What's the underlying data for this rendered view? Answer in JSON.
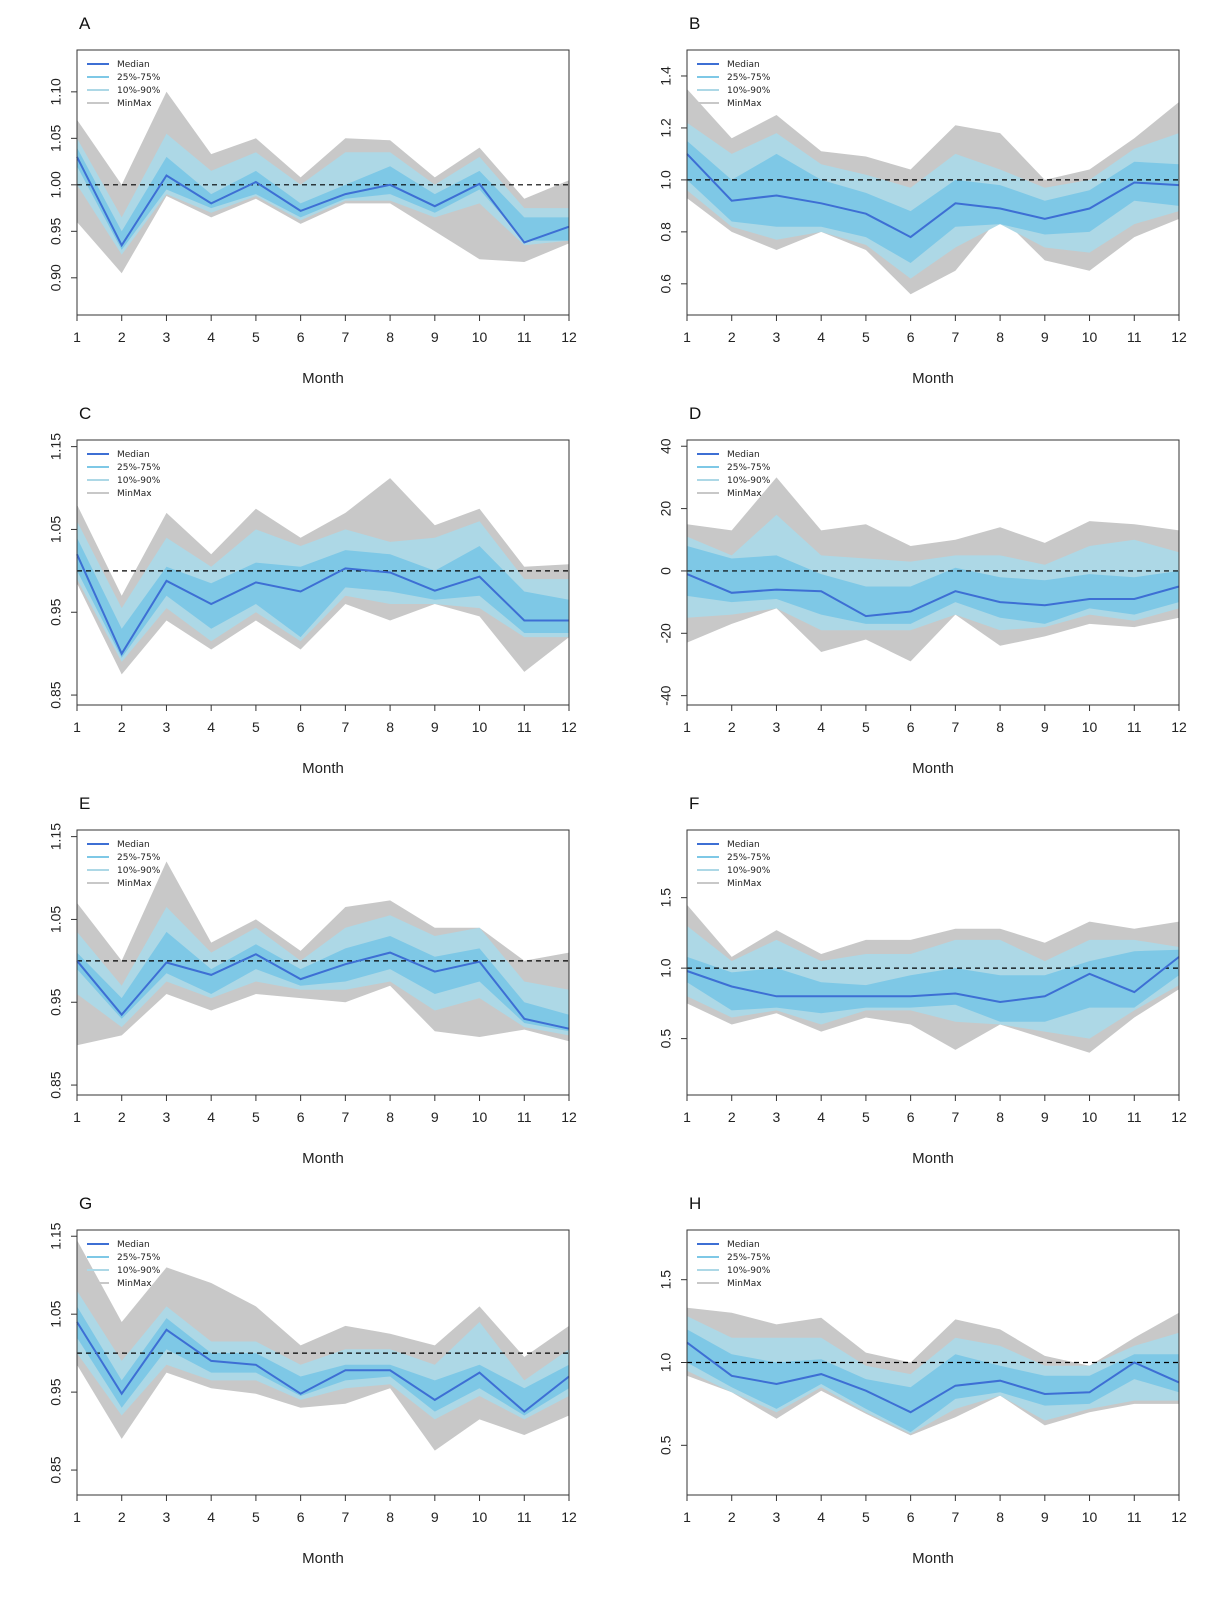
{
  "figure": {
    "xlabel": "Month",
    "legend": [
      "Median",
      "25%-75%",
      "10%-90%",
      "MinMax"
    ],
    "colors": {
      "median": "#3d6fd4",
      "iqr": "#7ec8e6",
      "p1090": "#add8e6",
      "minmax": "#c8c8c8",
      "reference": "#000000"
    }
  },
  "chart_data": [
    {
      "panel": "A",
      "type": "area",
      "x": [
        1,
        2,
        3,
        4,
        5,
        6,
        7,
        8,
        9,
        10,
        11,
        12
      ],
      "xlabel": "Month",
      "ylabel": "",
      "ylim": [
        0.86,
        1.145
      ],
      "yticks": [
        "0.90",
        "0.95",
        "1.00",
        "1.05",
        "1.10"
      ],
      "reference_line": 1.0,
      "legend_position": "top-left",
      "median": [
        1.03,
        0.935,
        1.01,
        0.98,
        1.003,
        0.972,
        0.99,
        1.0,
        0.977,
        1.001,
        0.938,
        0.955
      ],
      "p25": [
        1.02,
        0.93,
        0.995,
        0.975,
        0.99,
        0.965,
        0.985,
        0.99,
        0.97,
        0.995,
        0.94,
        0.94
      ],
      "p75": [
        1.04,
        0.95,
        1.03,
        0.99,
        1.015,
        0.98,
        1.0,
        1.02,
        0.99,
        1.015,
        0.965,
        0.965
      ],
      "p10": [
        1.0,
        0.925,
        0.99,
        0.97,
        0.988,
        0.962,
        0.983,
        0.983,
        0.965,
        0.98,
        0.935,
        0.94
      ],
      "p90": [
        1.05,
        0.965,
        1.055,
        1.015,
        1.035,
        1.0,
        1.035,
        1.035,
        1.0,
        1.03,
        0.975,
        0.975
      ],
      "min": [
        0.96,
        0.905,
        0.988,
        0.965,
        0.985,
        0.958,
        0.98,
        0.98,
        0.95,
        0.92,
        0.917,
        0.937
      ],
      "max": [
        1.07,
        1.0,
        1.1,
        1.033,
        1.05,
        1.008,
        1.05,
        1.048,
        1.008,
        1.04,
        0.985,
        1.005
      ]
    },
    {
      "panel": "B",
      "type": "area",
      "x": [
        1,
        2,
        3,
        4,
        5,
        6,
        7,
        8,
        9,
        10,
        11,
        12
      ],
      "xlabel": "Month",
      "ylabel": "",
      "ylim": [
        0.48,
        1.5
      ],
      "yticks": [
        "0.6",
        "0.8",
        "1.0",
        "1.2",
        "1.4"
      ],
      "reference_line": 1.0,
      "legend_position": "top-left",
      "median": [
        1.1,
        0.92,
        0.94,
        0.91,
        0.87,
        0.78,
        0.91,
        0.89,
        0.85,
        0.89,
        0.99,
        0.98
      ],
      "p25": [
        1.0,
        0.84,
        0.82,
        0.82,
        0.78,
        0.68,
        0.82,
        0.83,
        0.79,
        0.8,
        0.92,
        0.9
      ],
      "p75": [
        1.15,
        1.0,
        1.1,
        1.0,
        0.95,
        0.88,
        1.0,
        0.98,
        0.92,
        0.96,
        1.07,
        1.06
      ],
      "p10": [
        0.96,
        0.82,
        0.77,
        0.8,
        0.75,
        0.62,
        0.74,
        0.83,
        0.74,
        0.72,
        0.83,
        0.88
      ],
      "p90": [
        1.22,
        1.1,
        1.18,
        1.06,
        1.02,
        0.97,
        1.1,
        1.04,
        0.97,
        1.0,
        1.12,
        1.18
      ],
      "min": [
        0.93,
        0.8,
        0.73,
        0.8,
        0.73,
        0.56,
        0.65,
        0.86,
        0.69,
        0.65,
        0.78,
        0.85
      ],
      "max": [
        1.35,
        1.16,
        1.25,
        1.11,
        1.09,
        1.04,
        1.21,
        1.18,
        1.0,
        1.04,
        1.16,
        1.3
      ]
    },
    {
      "panel": "C",
      "type": "area",
      "x": [
        1,
        2,
        3,
        4,
        5,
        6,
        7,
        8,
        9,
        10,
        11,
        12
      ],
      "xlabel": "Month",
      "ylabel": "",
      "ylim": [
        0.838,
        1.158
      ],
      "yticks": [
        "0.85",
        "0.95",
        "1.05",
        "1.15"
      ],
      "reference_line": 1.0,
      "legend_position": "top-left",
      "median": [
        1.02,
        0.9,
        0.988,
        0.96,
        0.986,
        0.975,
        1.003,
        0.998,
        0.976,
        0.993,
        0.94,
        0.94
      ],
      "p25": [
        1.0,
        0.895,
        0.97,
        0.93,
        0.96,
        0.92,
        0.98,
        0.975,
        0.965,
        0.97,
        0.925,
        0.925
      ],
      "p75": [
        1.04,
        0.93,
        1.005,
        0.985,
        1.01,
        1.005,
        1.025,
        1.02,
        1.0,
        1.03,
        0.975,
        0.965
      ],
      "p10": [
        0.99,
        0.89,
        0.955,
        0.915,
        0.95,
        0.915,
        0.97,
        0.96,
        0.96,
        0.955,
        0.92,
        0.92
      ],
      "p90": [
        1.06,
        0.955,
        1.04,
        1.005,
        1.05,
        1.03,
        1.05,
        1.035,
        1.04,
        1.06,
        0.99,
        0.99
      ],
      "min": [
        0.985,
        0.875,
        0.94,
        0.905,
        0.94,
        0.905,
        0.96,
        0.94,
        0.96,
        0.945,
        0.878,
        0.92
      ],
      "max": [
        1.08,
        0.97,
        1.07,
        1.02,
        1.075,
        1.04,
        1.07,
        1.112,
        1.055,
        1.075,
        1.005,
        1.008
      ]
    },
    {
      "panel": "D",
      "type": "area",
      "x": [
        1,
        2,
        3,
        4,
        5,
        6,
        7,
        8,
        9,
        10,
        11,
        12
      ],
      "xlabel": "Month",
      "ylabel": "",
      "ylim": [
        -43,
        42
      ],
      "yticks": [
        "-40",
        "-20",
        "0",
        "20",
        "40"
      ],
      "reference_line": 0,
      "legend_position": "top-left",
      "median": [
        -1,
        -7,
        -6,
        -6.5,
        -14.5,
        -13,
        -6.5,
        -10,
        -11,
        -9,
        -9,
        -5
      ],
      "p25": [
        -8,
        -10,
        -9,
        -14,
        -17,
        -17,
        -10,
        -15,
        -17,
        -12,
        -14,
        -10
      ],
      "p75": [
        8,
        4,
        5,
        -1,
        -5,
        -5,
        1,
        -2,
        -3,
        -1,
        -2,
        0
      ],
      "p10": [
        -15,
        -14,
        -12,
        -19,
        -19,
        -19,
        -14,
        -19,
        -18,
        -14,
        -16,
        -12
      ],
      "p90": [
        11,
        5,
        18,
        5,
        4,
        3,
        5,
        5,
        2,
        8,
        10,
        6
      ],
      "min": [
        -23,
        -17,
        -12,
        -26,
        -22,
        -29,
        -14,
        -24,
        -21,
        -17,
        -18,
        -15
      ],
      "max": [
        15,
        13,
        30,
        13,
        15,
        8,
        10,
        14,
        9,
        16,
        15,
        13
      ]
    },
    {
      "panel": "E",
      "type": "area",
      "x": [
        1,
        2,
        3,
        4,
        5,
        6,
        7,
        8,
        9,
        10,
        11,
        12
      ],
      "xlabel": "Month",
      "ylabel": "",
      "ylim": [
        0.838,
        1.158
      ],
      "yticks": [
        "0.85",
        "0.95",
        "1.05",
        "1.15"
      ],
      "reference_line": 1.0,
      "legend_position": "top-left",
      "median": [
        1.0,
        0.935,
        0.998,
        0.983,
        1.008,
        0.978,
        0.996,
        1.01,
        0.987,
        0.999,
        0.93,
        0.918
      ],
      "p25": [
        0.99,
        0.93,
        0.985,
        0.96,
        0.99,
        0.97,
        0.975,
        0.99,
        0.96,
        0.975,
        0.925,
        0.915
      ],
      "p75": [
        1.01,
        0.955,
        1.035,
        0.99,
        1.02,
        0.99,
        1.015,
        1.03,
        1.005,
        1.015,
        0.95,
        0.935
      ],
      "p10": [
        0.96,
        0.92,
        0.975,
        0.955,
        0.975,
        0.965,
        0.965,
        0.975,
        0.94,
        0.955,
        0.92,
        0.91
      ],
      "p90": [
        1.035,
        0.97,
        1.065,
        1.01,
        1.04,
        1.0,
        1.04,
        1.055,
        1.03,
        1.04,
        0.975,
        0.965
      ],
      "min": [
        0.898,
        0.91,
        0.96,
        0.94,
        0.96,
        0.955,
        0.95,
        0.97,
        0.915,
        0.908,
        0.917,
        0.903
      ],
      "max": [
        1.07,
        1.0,
        1.12,
        1.022,
        1.05,
        1.012,
        1.065,
        1.073,
        1.04,
        1.04,
        1.0,
        1.01
      ]
    },
    {
      "panel": "F",
      "type": "area",
      "x": [
        1,
        2,
        3,
        4,
        5,
        6,
        7,
        8,
        9,
        10,
        11,
        12
      ],
      "xlabel": "Month",
      "ylabel": "",
      "ylim": [
        0.1,
        1.98
      ],
      "yticks": [
        "0.5",
        "1.0",
        "1.5"
      ],
      "reference_line": 1.0,
      "legend_position": "top-left",
      "median": [
        0.98,
        0.87,
        0.8,
        0.8,
        0.8,
        0.8,
        0.82,
        0.76,
        0.8,
        0.96,
        0.83,
        1.08
      ],
      "p25": [
        0.9,
        0.7,
        0.72,
        0.68,
        0.72,
        0.72,
        0.74,
        0.62,
        0.62,
        0.72,
        0.72,
        0.95
      ],
      "p75": [
        1.08,
        0.97,
        1.0,
        0.9,
        0.88,
        0.95,
        1.0,
        0.95,
        0.95,
        1.05,
        1.12,
        1.13
      ],
      "p10": [
        0.8,
        0.65,
        0.7,
        0.6,
        0.7,
        0.7,
        0.62,
        0.6,
        0.55,
        0.5,
        0.7,
        0.88
      ],
      "p90": [
        1.3,
        1.05,
        1.2,
        1.05,
        1.1,
        1.1,
        1.2,
        1.2,
        1.05,
        1.2,
        1.2,
        1.15
      ],
      "min": [
        0.75,
        0.6,
        0.68,
        0.55,
        0.65,
        0.6,
        0.42,
        0.6,
        0.5,
        0.4,
        0.65,
        0.85
      ],
      "max": [
        1.45,
        1.08,
        1.27,
        1.1,
        1.2,
        1.2,
        1.28,
        1.28,
        1.18,
        1.33,
        1.28,
        1.33
      ]
    },
    {
      "panel": "G",
      "type": "area",
      "x": [
        1,
        2,
        3,
        4,
        5,
        6,
        7,
        8,
        9,
        10,
        11,
        12
      ],
      "xlabel": "Month",
      "ylabel": "",
      "ylim": [
        0.818,
        1.158
      ],
      "yticks": [
        "0.85",
        "0.95",
        "1.05",
        "1.15"
      ],
      "reference_line": 1.0,
      "legend_position": "top-left",
      "median": [
        1.04,
        0.948,
        1.03,
        0.99,
        0.985,
        0.948,
        0.978,
        0.978,
        0.94,
        0.975,
        0.925,
        0.97
      ],
      "p25": [
        1.02,
        0.93,
        1.005,
        0.975,
        0.975,
        0.945,
        0.965,
        0.97,
        0.925,
        0.955,
        0.92,
        0.955
      ],
      "p75": [
        1.06,
        0.965,
        1.045,
        1.0,
        1.0,
        0.97,
        0.985,
        0.985,
        0.965,
        0.985,
        0.955,
        0.985
      ],
      "p10": [
        1.0,
        0.92,
        0.985,
        0.965,
        0.965,
        0.94,
        0.955,
        0.96,
        0.915,
        0.945,
        0.915,
        0.945
      ],
      "p90": [
        1.08,
        0.99,
        1.06,
        1.015,
        1.015,
        0.985,
        1.005,
        1.005,
        0.985,
        1.04,
        0.965,
        1.005
      ],
      "min": [
        0.985,
        0.89,
        0.975,
        0.955,
        0.948,
        0.93,
        0.935,
        0.955,
        0.875,
        0.915,
        0.895,
        0.92
      ],
      "max": [
        1.145,
        1.04,
        1.11,
        1.09,
        1.06,
        1.01,
        1.035,
        1.025,
        1.01,
        1.06,
        0.995,
        1.035
      ]
    },
    {
      "panel": "H",
      "type": "area",
      "x": [
        1,
        2,
        3,
        4,
        5,
        6,
        7,
        8,
        9,
        10,
        11,
        12
      ],
      "xlabel": "Month",
      "ylabel": "",
      "ylim": [
        0.2,
        1.8
      ],
      "yticks": [
        "0.5",
        "1.0",
        "1.5"
      ],
      "reference_line": 1.0,
      "legend_position": "top-left",
      "median": [
        1.12,
        0.92,
        0.87,
        0.93,
        0.83,
        0.7,
        0.86,
        0.89,
        0.81,
        0.82,
        1.0,
        0.88
      ],
      "p25": [
        1.0,
        0.85,
        0.72,
        0.87,
        0.72,
        0.58,
        0.78,
        0.82,
        0.74,
        0.75,
        0.9,
        0.82
      ],
      "p75": [
        1.2,
        1.05,
        1.0,
        1.02,
        0.9,
        0.85,
        1.05,
        0.98,
        0.92,
        0.92,
        1.05,
        1.05
      ],
      "p10": [
        0.95,
        0.82,
        0.7,
        0.85,
        0.7,
        0.57,
        0.72,
        0.8,
        0.65,
        0.72,
        0.77,
        0.77
      ],
      "p90": [
        1.28,
        1.15,
        1.15,
        1.15,
        0.98,
        0.93,
        1.15,
        1.1,
        0.98,
        0.98,
        1.1,
        1.18
      ],
      "min": [
        0.92,
        0.82,
        0.66,
        0.83,
        0.69,
        0.56,
        0.67,
        0.8,
        0.62,
        0.7,
        0.75,
        0.75
      ],
      "max": [
        1.33,
        1.3,
        1.23,
        1.27,
        1.06,
        1.0,
        1.26,
        1.2,
        1.04,
        0.98,
        1.15,
        1.3
      ]
    }
  ]
}
